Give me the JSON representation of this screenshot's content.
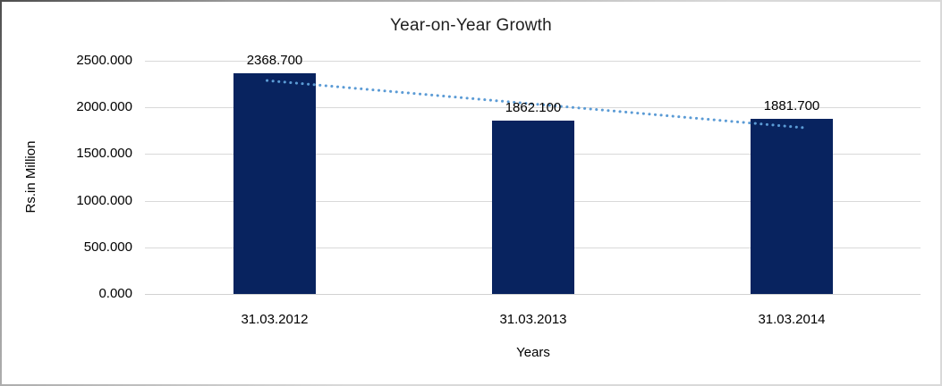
{
  "frame": {
    "background": "#ffffff",
    "border_dark": "#4d4d4d",
    "border_light": "#d9d9d9"
  },
  "chart_data": {
    "type": "bar",
    "title": "Year-on-Year Growth",
    "xlabel": "Years",
    "ylabel": "Rs.in Million",
    "categories": [
      "31.03.2012",
      "31.03.2013",
      "31.03.2014"
    ],
    "values": [
      2368.7,
      1862.1,
      1881.7
    ],
    "value_labels": [
      "2368.700",
      "1862.100",
      "1881.700"
    ],
    "ylim": [
      0,
      2500
    ],
    "ytick_values": [
      0,
      500,
      1000,
      1500,
      2000,
      2500
    ],
    "ytick_labels": [
      "0.000",
      "500.000",
      "1000.000",
      "1500.000",
      "2000.000",
      "2500.000"
    ],
    "grid": "horizontal",
    "legend_position": "none",
    "colors": {
      "bar": "#08235f",
      "gridline": "#d9d9d9",
      "axis_line": "#d2d2d2",
      "trendline": "#5b9bd5",
      "text": "#000000",
      "title_text": "#1f1f1f"
    },
    "trendline": {
      "type": "linear",
      "style": "dotted",
      "color": "#5b9bd5",
      "values": [
        2281.0,
        2037.5,
        1794.0
      ]
    }
  }
}
